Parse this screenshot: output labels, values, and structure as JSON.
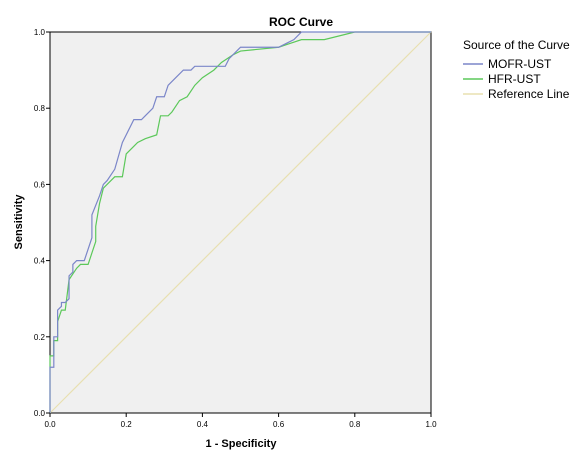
{
  "chart_data": {
    "type": "line",
    "title": "ROC Curve",
    "xlabel": "1 - Specificity",
    "ylabel": "Sensitivity",
    "xlim": [
      0,
      1
    ],
    "ylim": [
      0,
      1
    ],
    "xticks": [
      "0.0",
      "0.2",
      "0.4",
      "0.6",
      "0.8",
      "1.0"
    ],
    "yticks": [
      "0.0",
      "0.2",
      "0.4",
      "0.6",
      "0.8",
      "1.0"
    ],
    "grid": false,
    "legend": {
      "title": "Source of the Curve",
      "placement": "right"
    },
    "series": [
      {
        "name": "MOFR-UST",
        "color": "#7b86c9",
        "points": [
          [
            0,
            0
          ],
          [
            0,
            0.12
          ],
          [
            0.01,
            0.12
          ],
          [
            0.01,
            0.2
          ],
          [
            0.02,
            0.2
          ],
          [
            0.02,
            0.27
          ],
          [
            0.03,
            0.28
          ],
          [
            0.03,
            0.29
          ],
          [
            0.04,
            0.29
          ],
          [
            0.05,
            0.3
          ],
          [
            0.05,
            0.36
          ],
          [
            0.06,
            0.37
          ],
          [
            0.06,
            0.39
          ],
          [
            0.07,
            0.4
          ],
          [
            0.09,
            0.4
          ],
          [
            0.1,
            0.43
          ],
          [
            0.11,
            0.46
          ],
          [
            0.11,
            0.52
          ],
          [
            0.13,
            0.57
          ],
          [
            0.14,
            0.6
          ],
          [
            0.15,
            0.61
          ],
          [
            0.17,
            0.64
          ],
          [
            0.19,
            0.71
          ],
          [
            0.2,
            0.73
          ],
          [
            0.22,
            0.77
          ],
          [
            0.24,
            0.77
          ],
          [
            0.25,
            0.78
          ],
          [
            0.27,
            0.8
          ],
          [
            0.28,
            0.83
          ],
          [
            0.3,
            0.83
          ],
          [
            0.31,
            0.86
          ],
          [
            0.33,
            0.88
          ],
          [
            0.35,
            0.9
          ],
          [
            0.37,
            0.9
          ],
          [
            0.38,
            0.91
          ],
          [
            0.46,
            0.91
          ],
          [
            0.47,
            0.93
          ],
          [
            0.49,
            0.95
          ],
          [
            0.5,
            0.96
          ],
          [
            0.6,
            0.96
          ],
          [
            0.62,
            0.97
          ],
          [
            0.64,
            0.98
          ],
          [
            0.66,
            1.0
          ],
          [
            1.0,
            1.0
          ]
        ]
      },
      {
        "name": "HFR-UST",
        "color": "#5cc85a",
        "points": [
          [
            0,
            0
          ],
          [
            0,
            0.15
          ],
          [
            0.01,
            0.15
          ],
          [
            0.01,
            0.19
          ],
          [
            0.02,
            0.19
          ],
          [
            0.02,
            0.24
          ],
          [
            0.03,
            0.27
          ],
          [
            0.04,
            0.27
          ],
          [
            0.05,
            0.35
          ],
          [
            0.07,
            0.38
          ],
          [
            0.08,
            0.39
          ],
          [
            0.1,
            0.39
          ],
          [
            0.11,
            0.42
          ],
          [
            0.12,
            0.45
          ],
          [
            0.12,
            0.49
          ],
          [
            0.13,
            0.55
          ],
          [
            0.14,
            0.59
          ],
          [
            0.16,
            0.61
          ],
          [
            0.17,
            0.62
          ],
          [
            0.19,
            0.62
          ],
          [
            0.2,
            0.68
          ],
          [
            0.22,
            0.7
          ],
          [
            0.23,
            0.71
          ],
          [
            0.25,
            0.72
          ],
          [
            0.28,
            0.73
          ],
          [
            0.29,
            0.78
          ],
          [
            0.31,
            0.78
          ],
          [
            0.32,
            0.79
          ],
          [
            0.34,
            0.82
          ],
          [
            0.36,
            0.83
          ],
          [
            0.38,
            0.86
          ],
          [
            0.4,
            0.88
          ],
          [
            0.43,
            0.9
          ],
          [
            0.45,
            0.92
          ],
          [
            0.48,
            0.94
          ],
          [
            0.5,
            0.95
          ],
          [
            0.6,
            0.96
          ],
          [
            0.63,
            0.97
          ],
          [
            0.66,
            0.98
          ],
          [
            0.72,
            0.98
          ],
          [
            0.8,
            1.0
          ],
          [
            1.0,
            1.0
          ]
        ]
      },
      {
        "name": "Reference Line",
        "color": "#e8e0b0",
        "points": [
          [
            0,
            0
          ],
          [
            1,
            1
          ]
        ]
      }
    ]
  }
}
